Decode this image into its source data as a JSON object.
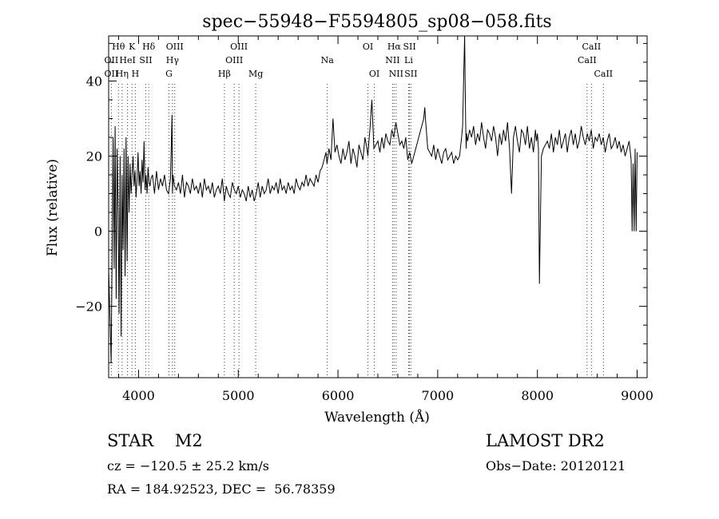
{
  "chart_data": {
    "type": "line",
    "title": "spec−55948−F5594805_sp08−058.fits",
    "xlabel": "Wavelength (Å)",
    "ylabel": "Flux (relative)",
    "xlim": [
      3700,
      9100
    ],
    "ylim": [
      -39,
      52
    ],
    "x_ticks": [
      4000,
      5000,
      6000,
      7000,
      8000,
      9000
    ],
    "y_ticks": [
      -20,
      0,
      20,
      40
    ],
    "x_minor_step": 200,
    "y_minor_step": 5,
    "line_color": "#000000",
    "marker_color": "#cc0000",
    "grid": false,
    "series": [
      {
        "x": [
          3700,
          3715,
          3725,
          3735,
          3745,
          3755,
          3765,
          3775,
          3785,
          3795,
          3805,
          3815,
          3825,
          3835,
          3845,
          3855,
          3865,
          3875,
          3885,
          3895,
          3905,
          3915,
          3925,
          3935,
          3945,
          3955,
          3965,
          3975,
          3985,
          3995,
          4005,
          4015,
          4025,
          4035,
          4045,
          4055,
          4065,
          4075,
          4085,
          4095,
          4105,
          4115,
          4125,
          4140,
          4160,
          4180,
          4200,
          4220,
          4240,
          4260,
          4280,
          4300,
          4320,
          4335,
          4340,
          4345,
          4360,
          4380,
          4400,
          4420,
          4440,
          4460,
          4480,
          4500,
          4520,
          4540,
          4560,
          4580,
          4600,
          4620,
          4640,
          4660,
          4680,
          4700,
          4720,
          4740,
          4760,
          4780,
          4800,
          4820,
          4840,
          4860,
          4880,
          4900,
          4920,
          4940,
          4960,
          4980,
          5000,
          5020,
          5040,
          5060,
          5080,
          5100,
          5120,
          5140,
          5160,
          5180,
          5200,
          5220,
          5240,
          5260,
          5280,
          5300,
          5320,
          5340,
          5360,
          5380,
          5400,
          5420,
          5440,
          5460,
          5480,
          5500,
          5520,
          5540,
          5560,
          5580,
          5600,
          5620,
          5640,
          5660,
          5680,
          5700,
          5720,
          5740,
          5760,
          5780,
          5800,
          5820,
          5840,
          5860,
          5880,
          5890,
          5900,
          5910,
          5930,
          5950,
          5970,
          5990,
          6010,
          6030,
          6050,
          6070,
          6090,
          6110,
          6130,
          6150,
          6170,
          6190,
          6210,
          6230,
          6250,
          6270,
          6290,
          6300,
          6310,
          6320,
          6340,
          6360,
          6380,
          6400,
          6420,
          6440,
          6460,
          6480,
          6500,
          6520,
          6540,
          6560,
          6580,
          6600,
          6620,
          6640,
          6660,
          6680,
          6700,
          6720,
          6740,
          6760,
          6780,
          6800,
          6820,
          6840,
          6860,
          6870,
          6880,
          6900,
          6920,
          6940,
          6960,
          6980,
          7000,
          7020,
          7040,
          7060,
          7080,
          7100,
          7120,
          7140,
          7160,
          7180,
          7200,
          7220,
          7240,
          7250,
          7260,
          7270,
          7280,
          7285,
          7290,
          7300,
          7320,
          7340,
          7360,
          7380,
          7400,
          7420,
          7440,
          7460,
          7480,
          7500,
          7520,
          7540,
          7560,
          7580,
          7600,
          7620,
          7640,
          7660,
          7680,
          7700,
          7720,
          7740,
          7760,
          7780,
          7800,
          7820,
          7840,
          7860,
          7880,
          7900,
          7920,
          7940,
          7960,
          7980,
          7990,
          8000,
          8010,
          8020,
          8040,
          8060,
          8080,
          8100,
          8120,
          8140,
          8160,
          8180,
          8200,
          8220,
          8240,
          8260,
          8280,
          8300,
          8320,
          8340,
          8360,
          8380,
          8400,
          8420,
          8440,
          8460,
          8480,
          8500,
          8520,
          8540,
          8560,
          8580,
          8600,
          8620,
          8640,
          8660,
          8680,
          8700,
          8720,
          8740,
          8760,
          8780,
          8800,
          8820,
          8840,
          8860,
          8880,
          8900,
          8920,
          8940,
          8950,
          8960,
          8970,
          8980,
          8990,
          9000
        ],
        "y": [
          -10,
          -25,
          -35,
          -5,
          25,
          -10,
          28,
          -18,
          22,
          5,
          -22,
          20,
          -28,
          15,
          -5,
          22,
          -12,
          25,
          -8,
          20,
          5,
          18,
          10,
          15,
          20,
          12,
          16,
          9,
          14,
          21,
          12,
          16,
          10,
          19,
          13,
          24,
          11,
          15,
          10,
          17,
          13,
          12,
          14,
          15,
          10,
          16,
          11,
          14,
          12,
          15,
          11,
          10,
          14,
          31,
          10,
          15,
          12,
          11,
          13,
          10,
          15,
          9,
          13,
          12,
          10,
          14,
          11,
          12,
          10,
          13,
          9,
          14,
          11,
          12,
          10,
          13,
          9,
          11,
          12,
          10,
          14,
          8,
          12,
          10,
          9,
          13,
          11,
          10,
          12,
          9,
          11,
          10,
          8,
          12,
          9,
          11,
          8,
          10,
          13,
          9,
          12,
          10,
          11,
          14,
          10,
          12,
          11,
          13,
          10,
          14,
          11,
          12,
          10,
          13,
          11,
          12,
          10,
          14,
          12,
          11,
          13,
          12,
          15,
          12,
          14,
          13,
          12,
          15,
          13,
          16,
          17,
          19,
          21,
          18,
          20,
          22,
          19,
          30,
          21,
          23,
          20,
          18,
          22,
          19,
          21,
          24,
          18,
          22,
          20,
          17,
          23,
          21,
          19,
          25,
          22,
          20,
          24,
          27,
          35,
          22,
          23,
          24,
          21,
          25,
          22,
          26,
          24,
          23,
          27,
          25,
          29,
          26,
          23,
          24,
          22,
          25,
          19,
          21,
          18,
          20,
          22,
          24,
          26,
          28,
          30,
          33,
          29,
          22,
          21,
          20,
          23,
          19,
          22,
          20,
          18,
          21,
          22,
          19,
          20,
          21,
          18,
          20,
          19,
          20,
          25,
          28,
          40,
          60,
          30,
          22,
          26,
          24,
          27,
          25,
          28,
          23,
          26,
          24,
          29,
          25,
          22,
          27,
          26,
          24,
          28,
          25,
          20,
          26,
          23,
          27,
          24,
          29,
          22,
          10,
          25,
          28,
          24,
          21,
          27,
          26,
          23,
          28,
          22,
          25,
          21,
          27,
          24,
          26,
          22,
          -14,
          20,
          22,
          23,
          24,
          22,
          26,
          21,
          25,
          23,
          27,
          22,
          24,
          26,
          21,
          25,
          27,
          23,
          26,
          22,
          24,
          28,
          25,
          23,
          26,
          24,
          27,
          22,
          25,
          24,
          26,
          23,
          25,
          21,
          24,
          26,
          22,
          23,
          25,
          22,
          24,
          21,
          23,
          20,
          22,
          24,
          19,
          0,
          18,
          0,
          22,
          0,
          21
        ]
      }
    ],
    "line_markers": [
      {
        "label": "Hθ",
        "x": 3798,
        "row": 0
      },
      {
        "label": "K",
        "x": 3934,
        "row": 0
      },
      {
        "label": "Hδ",
        "x": 4102,
        "row": 0
      },
      {
        "label": "OIII",
        "x": 4363,
        "row": 0
      },
      {
        "label": "OIII",
        "x": 5007,
        "row": 0
      },
      {
        "label": "OI",
        "x": 6300,
        "row": 0
      },
      {
        "label": "Hα",
        "x": 6563,
        "row": 0
      },
      {
        "label": "SII",
        "x": 6717,
        "row": 0
      },
      {
        "label": "CaII",
        "x": 8542,
        "row": 0
      },
      {
        "label": "OII",
        "x": 3727,
        "row": 1
      },
      {
        "label": "HeI",
        "x": 3889,
        "row": 1
      },
      {
        "label": "SII",
        "x": 4072,
        "row": 1
      },
      {
        "label": "Hγ",
        "x": 4340,
        "row": 1
      },
      {
        "label": "OIII",
        "x": 4959,
        "row": 1
      },
      {
        "label": "Na",
        "x": 5893,
        "row": 1
      },
      {
        "label": "NII",
        "x": 6548,
        "row": 1
      },
      {
        "label": "Li",
        "x": 6708,
        "row": 1
      },
      {
        "label": "CaII",
        "x": 8498,
        "row": 1
      },
      {
        "label": "OII",
        "x": 3727,
        "row": 2
      },
      {
        "label": "Hη",
        "x": 3835,
        "row": 2
      },
      {
        "label": "H",
        "x": 3968,
        "row": 2
      },
      {
        "label": "G",
        "x": 4305,
        "row": 2
      },
      {
        "label": "Hβ",
        "x": 4861,
        "row": 2
      },
      {
        "label": "Mg",
        "x": 5175,
        "row": 2
      },
      {
        "label": "OI",
        "x": 6364,
        "row": 2
      },
      {
        "label": "NII",
        "x": 6583,
        "row": 2
      },
      {
        "label": "SII",
        "x": 6731,
        "row": 2
      },
      {
        "label": "CaII",
        "x": 8662,
        "row": 2
      }
    ]
  },
  "info": {
    "object_class": "STAR    M2",
    "survey": "LAMOST DR2",
    "cz": "cz = −120.5 ± 25.2 km/s",
    "obs_date": "Obs−Date: 20120121",
    "ra_dec": "RA = 184.92523, DEC =  56.78359"
  }
}
